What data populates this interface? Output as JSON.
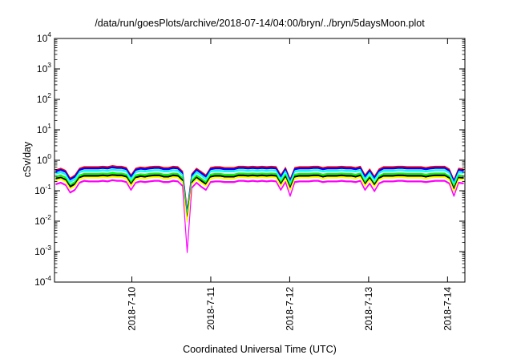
{
  "chart_data": {
    "type": "area",
    "title": "/data/run/goesPlots/archive/2018-07-14/04:00/bryn/../bryn/5daysMoon.plot",
    "xlabel": "Coordinated Universal Time (UTC)",
    "ylabel": "cSv/day",
    "yscale": "log",
    "ylim_exponents": [
      -4,
      4
    ],
    "y_ticks": [
      {
        "base": "10",
        "exp": "4"
      },
      {
        "base": "10",
        "exp": "3"
      },
      {
        "base": "10",
        "exp": "2"
      },
      {
        "base": "10",
        "exp": "1"
      },
      {
        "base": "10",
        "exp": "0"
      },
      {
        "base": "10",
        "exp": "-1"
      },
      {
        "base": "10",
        "exp": "-2"
      },
      {
        "base": "10",
        "exp": "-3"
      },
      {
        "base": "10",
        "exp": "-4"
      }
    ],
    "x_ticks": [
      "2018-7-10",
      "2018-7-11",
      "2018-7-12",
      "2018-7-13",
      "2018-7-14"
    ],
    "xlim_days": [
      9.02,
      14.22
    ],
    "x_tick_days": [
      10,
      11,
      12,
      13,
      14
    ],
    "grid": false,
    "series": [
      {
        "color": "#ff00ff",
        "values": [
          0.17,
          0.19,
          0.16,
          0.09,
          0.11,
          0.19,
          0.22,
          0.21,
          0.21,
          0.21,
          0.22,
          0.21,
          0.23,
          0.22,
          0.22,
          0.2,
          0.11,
          0.19,
          0.21,
          0.2,
          0.21,
          0.22,
          0.22,
          0.2,
          0.2,
          0.22,
          0.21,
          0.15,
          0.001,
          0.13,
          0.19,
          0.14,
          0.11,
          0.2,
          0.21,
          0.21,
          0.2,
          0.2,
          0.2,
          0.22,
          0.22,
          0.21,
          0.22,
          0.21,
          0.22,
          0.21,
          0.22,
          0.21,
          0.11,
          0.2,
          0.07,
          0.2,
          0.21,
          0.21,
          0.21,
          0.22,
          0.22,
          0.2,
          0.21,
          0.21,
          0.21,
          0.22,
          0.21,
          0.21,
          0.2,
          0.22,
          0.11,
          0.18,
          0.1,
          0.18,
          0.21,
          0.21,
          0.21,
          0.22,
          0.22,
          0.21,
          0.21,
          0.21,
          0.21,
          0.2,
          0.21,
          0.22,
          0.22,
          0.22,
          0.18,
          0.07,
          0.19,
          0.18
        ]
      },
      {
        "color": "#ffff00",
        "values": [
          0.23,
          0.25,
          0.21,
          0.12,
          0.15,
          0.25,
          0.28,
          0.28,
          0.28,
          0.28,
          0.29,
          0.28,
          0.3,
          0.29,
          0.29,
          0.26,
          0.15,
          0.25,
          0.27,
          0.26,
          0.28,
          0.29,
          0.29,
          0.26,
          0.26,
          0.29,
          0.28,
          0.2,
          0.01,
          0.17,
          0.25,
          0.19,
          0.15,
          0.26,
          0.28,
          0.28,
          0.26,
          0.26,
          0.26,
          0.29,
          0.29,
          0.28,
          0.29,
          0.28,
          0.29,
          0.28,
          0.29,
          0.28,
          0.15,
          0.26,
          0.11,
          0.26,
          0.28,
          0.28,
          0.28,
          0.29,
          0.29,
          0.26,
          0.28,
          0.28,
          0.28,
          0.29,
          0.28,
          0.28,
          0.26,
          0.29,
          0.15,
          0.24,
          0.14,
          0.24,
          0.28,
          0.28,
          0.28,
          0.29,
          0.29,
          0.28,
          0.28,
          0.28,
          0.28,
          0.26,
          0.28,
          0.29,
          0.29,
          0.29,
          0.24,
          0.1,
          0.25,
          0.24
        ]
      },
      {
        "color": "#000000",
        "values": [
          0.26,
          0.28,
          0.24,
          0.14,
          0.17,
          0.28,
          0.32,
          0.32,
          0.32,
          0.32,
          0.33,
          0.32,
          0.34,
          0.33,
          0.33,
          0.3,
          0.17,
          0.28,
          0.31,
          0.3,
          0.32,
          0.33,
          0.33,
          0.3,
          0.3,
          0.33,
          0.32,
          0.23,
          0.012,
          0.19,
          0.28,
          0.22,
          0.17,
          0.3,
          0.32,
          0.32,
          0.3,
          0.3,
          0.3,
          0.33,
          0.33,
          0.32,
          0.33,
          0.32,
          0.33,
          0.32,
          0.33,
          0.32,
          0.17,
          0.3,
          0.13,
          0.3,
          0.32,
          0.32,
          0.32,
          0.33,
          0.33,
          0.3,
          0.32,
          0.32,
          0.32,
          0.33,
          0.32,
          0.32,
          0.3,
          0.33,
          0.17,
          0.27,
          0.16,
          0.27,
          0.32,
          0.32,
          0.32,
          0.33,
          0.33,
          0.32,
          0.32,
          0.32,
          0.32,
          0.3,
          0.32,
          0.33,
          0.33,
          0.33,
          0.27,
          0.12,
          0.28,
          0.27
        ]
      },
      {
        "color": "#00ff00",
        "values": [
          0.3,
          0.33,
          0.28,
          0.16,
          0.2,
          0.33,
          0.37,
          0.37,
          0.37,
          0.37,
          0.38,
          0.37,
          0.4,
          0.38,
          0.38,
          0.35,
          0.2,
          0.33,
          0.36,
          0.35,
          0.37,
          0.38,
          0.38,
          0.35,
          0.35,
          0.38,
          0.37,
          0.27,
          0.014,
          0.22,
          0.33,
          0.26,
          0.2,
          0.35,
          0.37,
          0.37,
          0.35,
          0.35,
          0.35,
          0.38,
          0.38,
          0.37,
          0.38,
          0.37,
          0.38,
          0.37,
          0.38,
          0.37,
          0.2,
          0.35,
          0.15,
          0.35,
          0.37,
          0.37,
          0.37,
          0.38,
          0.38,
          0.35,
          0.37,
          0.37,
          0.37,
          0.38,
          0.37,
          0.37,
          0.35,
          0.38,
          0.2,
          0.31,
          0.18,
          0.31,
          0.37,
          0.37,
          0.37,
          0.38,
          0.38,
          0.37,
          0.37,
          0.37,
          0.37,
          0.35,
          0.37,
          0.38,
          0.38,
          0.38,
          0.31,
          0.14,
          0.33,
          0.31
        ]
      },
      {
        "color": "#00ffff",
        "values": [
          0.38,
          0.42,
          0.36,
          0.2,
          0.25,
          0.42,
          0.47,
          0.47,
          0.47,
          0.47,
          0.49,
          0.47,
          0.51,
          0.49,
          0.49,
          0.45,
          0.25,
          0.42,
          0.46,
          0.45,
          0.47,
          0.49,
          0.49,
          0.45,
          0.45,
          0.49,
          0.47,
          0.34,
          0.018,
          0.28,
          0.42,
          0.33,
          0.25,
          0.45,
          0.47,
          0.47,
          0.45,
          0.45,
          0.45,
          0.49,
          0.49,
          0.47,
          0.49,
          0.47,
          0.49,
          0.47,
          0.49,
          0.47,
          0.25,
          0.45,
          0.19,
          0.45,
          0.47,
          0.47,
          0.47,
          0.49,
          0.49,
          0.45,
          0.47,
          0.47,
          0.47,
          0.49,
          0.47,
          0.47,
          0.45,
          0.49,
          0.25,
          0.4,
          0.23,
          0.4,
          0.47,
          0.47,
          0.47,
          0.49,
          0.49,
          0.47,
          0.47,
          0.47,
          0.47,
          0.45,
          0.47,
          0.49,
          0.49,
          0.49,
          0.4,
          0.18,
          0.42,
          0.4
        ]
      },
      {
        "color": "#0000ff",
        "values": [
          0.45,
          0.5,
          0.43,
          0.24,
          0.3,
          0.5,
          0.56,
          0.56,
          0.56,
          0.56,
          0.58,
          0.56,
          0.61,
          0.58,
          0.58,
          0.53,
          0.3,
          0.5,
          0.55,
          0.53,
          0.56,
          0.58,
          0.58,
          0.53,
          0.53,
          0.58,
          0.56,
          0.4,
          0.02,
          0.33,
          0.5,
          0.39,
          0.3,
          0.53,
          0.56,
          0.56,
          0.53,
          0.53,
          0.53,
          0.58,
          0.58,
          0.56,
          0.58,
          0.56,
          0.58,
          0.56,
          0.58,
          0.56,
          0.3,
          0.53,
          0.22,
          0.53,
          0.56,
          0.56,
          0.56,
          0.58,
          0.58,
          0.53,
          0.56,
          0.56,
          0.56,
          0.58,
          0.56,
          0.56,
          0.53,
          0.58,
          0.3,
          0.47,
          0.27,
          0.47,
          0.56,
          0.56,
          0.56,
          0.58,
          0.58,
          0.56,
          0.56,
          0.56,
          0.56,
          0.53,
          0.56,
          0.58,
          0.58,
          0.58,
          0.47,
          0.21,
          0.5,
          0.47
        ]
      },
      {
        "color": "#ff0000",
        "values": [
          0.49,
          0.55,
          0.47,
          0.26,
          0.33,
          0.55,
          0.62,
          0.62,
          0.62,
          0.62,
          0.64,
          0.62,
          0.67,
          0.64,
          0.64,
          0.58,
          0.33,
          0.55,
          0.6,
          0.58,
          0.62,
          0.64,
          0.64,
          0.58,
          0.58,
          0.64,
          0.62,
          0.44,
          0.022,
          0.36,
          0.55,
          0.43,
          0.33,
          0.58,
          0.62,
          0.62,
          0.58,
          0.58,
          0.58,
          0.64,
          0.64,
          0.62,
          0.64,
          0.62,
          0.64,
          0.62,
          0.64,
          0.62,
          0.33,
          0.58,
          0.24,
          0.58,
          0.62,
          0.62,
          0.62,
          0.64,
          0.64,
          0.58,
          0.62,
          0.62,
          0.62,
          0.64,
          0.62,
          0.62,
          0.58,
          0.64,
          0.33,
          0.52,
          0.3,
          0.52,
          0.62,
          0.62,
          0.62,
          0.64,
          0.64,
          0.62,
          0.62,
          0.62,
          0.62,
          0.58,
          0.62,
          0.64,
          0.64,
          0.64,
          0.52,
          0.23,
          0.55,
          0.52
        ]
      },
      {
        "color": "#4a5a6e",
        "values": [
          0.47,
          0.52,
          0.45,
          0.25,
          0.31,
          0.52,
          0.59,
          0.59,
          0.59,
          0.59,
          0.61,
          0.59,
          0.64,
          0.61,
          0.61,
          0.55,
          0.31,
          0.52,
          0.57,
          0.55,
          0.59,
          0.61,
          0.61,
          0.55,
          0.55,
          0.61,
          0.59,
          0.42,
          0.021,
          0.34,
          0.52,
          0.41,
          0.31,
          0.55,
          0.59,
          0.59,
          0.55,
          0.55,
          0.55,
          0.61,
          0.61,
          0.59,
          0.61,
          0.59,
          0.61,
          0.59,
          0.61,
          0.59,
          0.31,
          0.55,
          0.23,
          0.55,
          0.59,
          0.59,
          0.59,
          0.61,
          0.61,
          0.55,
          0.59,
          0.59,
          0.59,
          0.61,
          0.59,
          0.59,
          0.55,
          0.61,
          0.31,
          0.49,
          0.28,
          0.49,
          0.59,
          0.59,
          0.59,
          0.61,
          0.61,
          0.59,
          0.59,
          0.59,
          0.59,
          0.55,
          0.59,
          0.61,
          0.61,
          0.61,
          0.49,
          0.22,
          0.52,
          0.49
        ]
      }
    ]
  }
}
